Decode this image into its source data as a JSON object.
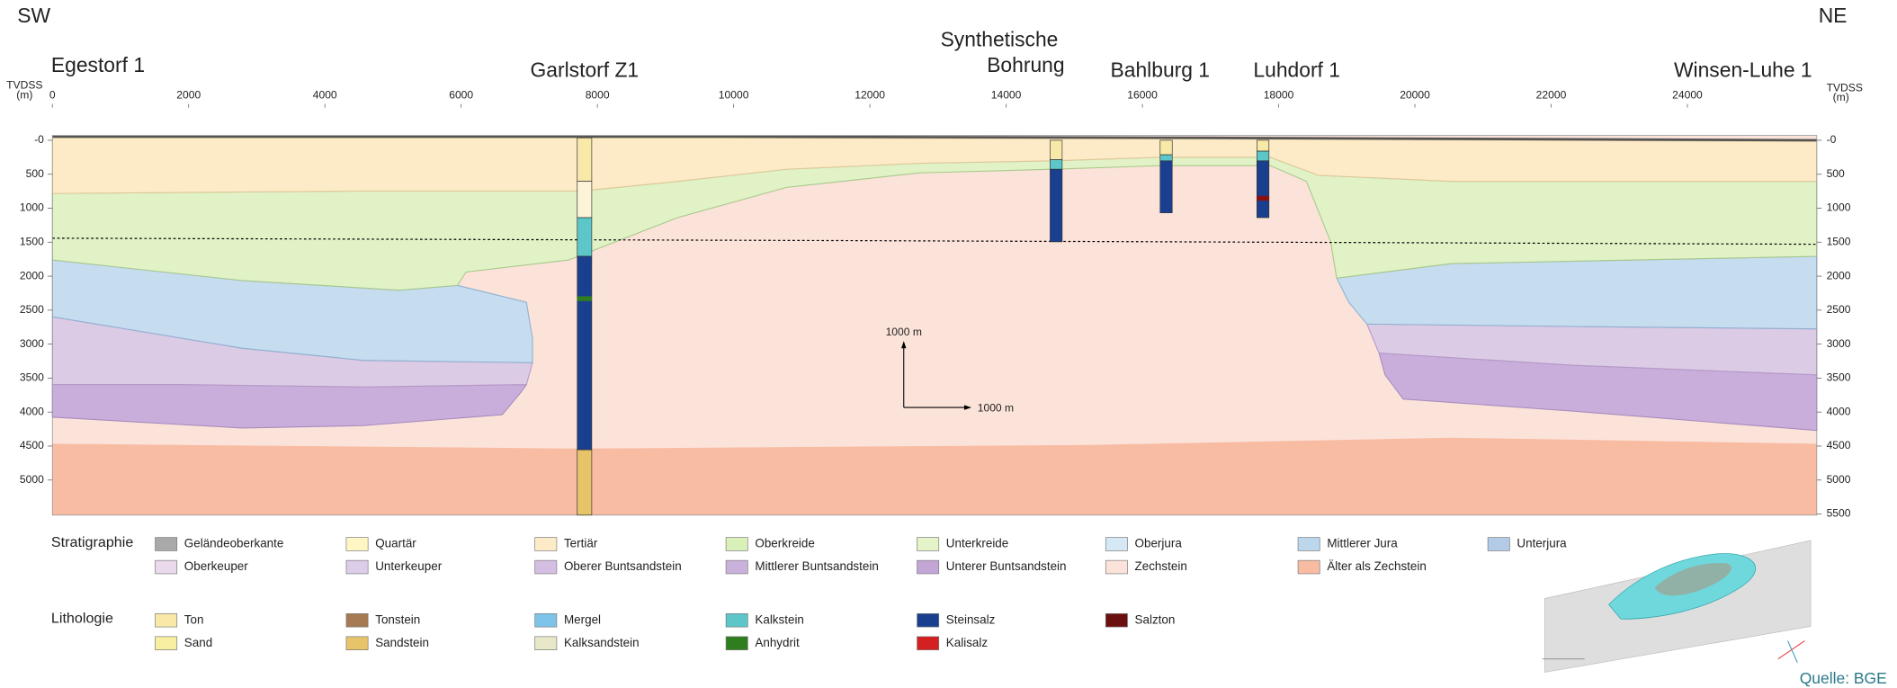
{
  "corners": {
    "left": "SW",
    "right": "NE"
  },
  "wells": [
    {
      "label": "Egestorf 1"
    },
    {
      "label": "Garlstorf Z1"
    },
    {
      "label": [
        "Synthetische",
        "Bohrung"
      ]
    },
    {
      "label": "Bahlburg 1"
    },
    {
      "label": "Luhdorf 1"
    },
    {
      "label": "Winsen-Luhe 1"
    }
  ],
  "axis": {
    "unit_left": [
      "TVDSS",
      "(m)"
    ],
    "unit_right": [
      "TVDSS",
      "(m)"
    ],
    "x_ticks": [
      0,
      2000,
      4000,
      6000,
      8000,
      10000,
      12000,
      14000,
      16000,
      18000,
      20000,
      22000,
      24000
    ],
    "depth_ticks_left": [
      {
        "value": 0,
        "label": "-0"
      },
      500,
      1000,
      1500,
      2000,
      2500,
      3000,
      3500,
      4000,
      4500,
      5000
    ],
    "depth_ticks_right": [
      {
        "value": 0,
        "label": "-0"
      },
      500,
      1000,
      1500,
      2000,
      2500,
      3000,
      3500,
      4000,
      4500,
      5000,
      5500
    ]
  },
  "scale_bar": {
    "vertical": "1000 m",
    "horizontal": "1000 m"
  },
  "legend": {
    "stratigraphie": {
      "title": "Stratigraphie",
      "rows": [
        [
          {
            "label": "Geländeoberkante",
            "color": "#a9a9a9"
          },
          {
            "label": "Quartär",
            "color": "#fff6c4"
          },
          {
            "label": "Tertiär",
            "color": "#fdebc8"
          },
          {
            "label": "Oberkreide",
            "color": "#d9f0b8"
          },
          {
            "label": "Unterkreide",
            "color": "#e4f3c8"
          },
          {
            "label": "Oberjura",
            "color": "#d5e8f5"
          },
          {
            "label": "Mittlerer Jura",
            "color": "#bcd6ec"
          },
          {
            "label": "Unterjura",
            "color": "#b3cbe6"
          }
        ],
        [
          {
            "label": "Oberkeuper",
            "color": "#eadaec"
          },
          {
            "label": "Unterkeuper",
            "color": "#dccde8"
          },
          {
            "label": "Oberer Buntsandstein",
            "color": "#d4bfe2"
          },
          {
            "label": "Mittlerer Buntsandstein",
            "color": "#cab1dc"
          },
          {
            "label": "Unterer Buntsandstein",
            "color": "#c3a6d6"
          },
          {
            "label": "Zechstein",
            "color": "#fce3da"
          },
          {
            "label": "Älter als Zechstein",
            "color": "#f8bca3"
          }
        ]
      ]
    },
    "lithologie": {
      "title": "Lithologie",
      "rows": [
        [
          {
            "label": "Ton",
            "color": "#f8e9a8"
          },
          {
            "label": "Tonstein",
            "color": "#a67a52"
          },
          {
            "label": "Mergel",
            "color": "#7dc4e8"
          },
          {
            "label": "Kalkstein",
            "color": "#5cc6c8"
          },
          {
            "label": "Steinsalz",
            "color": "#1b3f8f"
          },
          {
            "label": "Salzton",
            "color": "#6b1010"
          }
        ],
        [
          {
            "label": "Sand",
            "color": "#f8f0a0"
          },
          {
            "label": "Sandstein",
            "color": "#e7c46a"
          },
          {
            "label": "Kalksandstein",
            "color": "#e8e8c8"
          },
          {
            "label": "Anhydrit",
            "color": "#2e7d1e"
          },
          {
            "label": "Kalisalz",
            "color": "#d42020"
          }
        ]
      ]
    }
  },
  "source": "Quelle: BGE"
}
